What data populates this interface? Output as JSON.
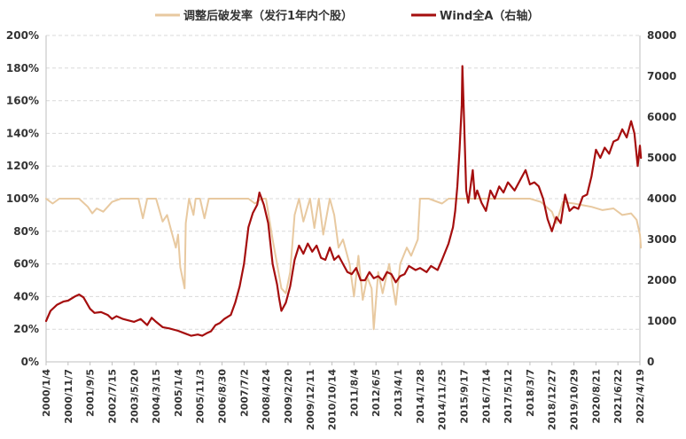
{
  "chart_data": {
    "type": "line",
    "title": "",
    "legend_position": "top",
    "grid": true,
    "categories": [
      "2000/1/4",
      "2000/11/7",
      "2001/9/5",
      "2002/7/15",
      "2003/5/20",
      "2004/3/15",
      "2005/1/4",
      "2005/11/3",
      "2006/8/30",
      "2007/7/2",
      "2008/4/24",
      "2009/2/20",
      "2009/12/11",
      "2010/10/14",
      "2011/8/4",
      "2012/6/5",
      "2013/4/1",
      "2014/1/28",
      "2014/11/25",
      "2015/9/17",
      "2016/7/14",
      "2017/5/12",
      "2018/3/7",
      "2018/12/27",
      "2019/10/29",
      "2020/8/21",
      "2021/6/22",
      "2022/4/19"
    ],
    "y_left": {
      "min": 0,
      "max": 200,
      "step": 20,
      "tick_labels": [
        "0%",
        "20%",
        "40%",
        "60%",
        "80%",
        "100%",
        "120%",
        "140%",
        "160%",
        "180%",
        "200%"
      ]
    },
    "y_right": {
      "min": 0,
      "max": 8000,
      "step": 1000,
      "tick_labels": [
        "0",
        "1000",
        "2000",
        "3000",
        "4000",
        "5000",
        "6000",
        "7000",
        "8000"
      ]
    },
    "series": [
      {
        "name": "调整后破发率（发行1年内个股）",
        "axis": "left",
        "color": "#E8C9A0",
        "points": [
          [
            0,
            100
          ],
          [
            0.3,
            97
          ],
          [
            0.6,
            100
          ],
          [
            1.5,
            100
          ],
          [
            1.9,
            95
          ],
          [
            2.1,
            91
          ],
          [
            2.3,
            94
          ],
          [
            2.6,
            92
          ],
          [
            3.0,
            98
          ],
          [
            3.4,
            100
          ],
          [
            4.2,
            100
          ],
          [
            4.4,
            88
          ],
          [
            4.6,
            100
          ],
          [
            5.0,
            100
          ],
          [
            5.3,
            86
          ],
          [
            5.5,
            90
          ],
          [
            5.7,
            80
          ],
          [
            5.9,
            70
          ],
          [
            6.0,
            78
          ],
          [
            6.1,
            58
          ],
          [
            6.3,
            45
          ],
          [
            6.35,
            85
          ],
          [
            6.5,
            100
          ],
          [
            6.7,
            90
          ],
          [
            6.8,
            100
          ],
          [
            7.0,
            100
          ],
          [
            7.2,
            88
          ],
          [
            7.4,
            100
          ],
          [
            8.0,
            100
          ],
          [
            8.5,
            100
          ],
          [
            9.2,
            100
          ],
          [
            9.5,
            97
          ],
          [
            9.8,
            100
          ],
          [
            10.0,
            100
          ],
          [
            10.3,
            75
          ],
          [
            10.5,
            60
          ],
          [
            10.7,
            45
          ],
          [
            10.9,
            42
          ],
          [
            11.1,
            55
          ],
          [
            11.3,
            90
          ],
          [
            11.5,
            100
          ],
          [
            11.7,
            86
          ],
          [
            12.0,
            100
          ],
          [
            12.2,
            82
          ],
          [
            12.4,
            100
          ],
          [
            12.6,
            78
          ],
          [
            12.9,
            100
          ],
          [
            13.1,
            90
          ],
          [
            13.3,
            70
          ],
          [
            13.5,
            75
          ],
          [
            13.8,
            60
          ],
          [
            14.0,
            40
          ],
          [
            14.2,
            65
          ],
          [
            14.4,
            38
          ],
          [
            14.6,
            52
          ],
          [
            14.8,
            45
          ],
          [
            14.9,
            20
          ],
          [
            15.1,
            55
          ],
          [
            15.3,
            42
          ],
          [
            15.6,
            60
          ],
          [
            15.9,
            35
          ],
          [
            16.1,
            60
          ],
          [
            16.4,
            70
          ],
          [
            16.6,
            65
          ],
          [
            16.9,
            75
          ],
          [
            17.0,
            100
          ],
          [
            17.4,
            100
          ],
          [
            18.0,
            97
          ],
          [
            18.3,
            100
          ],
          [
            19.0,
            100
          ],
          [
            20.0,
            100
          ],
          [
            21.0,
            100
          ],
          [
            22.0,
            100
          ],
          [
            22.5,
            98
          ],
          [
            23.0,
            92
          ],
          [
            23.2,
            85
          ],
          [
            23.5,
            98
          ],
          [
            24.0,
            97
          ],
          [
            24.4,
            96
          ],
          [
            24.8,
            95
          ],
          [
            25.3,
            93
          ],
          [
            25.8,
            94
          ],
          [
            26.2,
            90
          ],
          [
            26.6,
            91
          ],
          [
            26.85,
            87
          ],
          [
            27.0,
            78
          ],
          [
            27.05,
            70
          ]
        ]
      },
      {
        "name": "Wind全A（右轴）",
        "axis": "right",
        "color": "#A50E0E",
        "points": [
          [
            0,
            1000
          ],
          [
            0.2,
            1250
          ],
          [
            0.5,
            1400
          ],
          [
            0.8,
            1480
          ],
          [
            1.0,
            1500
          ],
          [
            1.3,
            1600
          ],
          [
            1.5,
            1650
          ],
          [
            1.7,
            1580
          ],
          [
            2.0,
            1300
          ],
          [
            2.2,
            1200
          ],
          [
            2.5,
            1220
          ],
          [
            2.8,
            1150
          ],
          [
            3.0,
            1050
          ],
          [
            3.2,
            1120
          ],
          [
            3.5,
            1050
          ],
          [
            4.0,
            980
          ],
          [
            4.3,
            1050
          ],
          [
            4.6,
            900
          ],
          [
            4.8,
            1080
          ],
          [
            5.0,
            980
          ],
          [
            5.3,
            850
          ],
          [
            5.6,
            820
          ],
          [
            6.0,
            760
          ],
          [
            6.3,
            700
          ],
          [
            6.6,
            640
          ],
          [
            6.9,
            670
          ],
          [
            7.1,
            640
          ],
          [
            7.3,
            700
          ],
          [
            7.5,
            750
          ],
          [
            7.7,
            900
          ],
          [
            7.9,
            950
          ],
          [
            8.1,
            1050
          ],
          [
            8.4,
            1150
          ],
          [
            8.6,
            1450
          ],
          [
            8.8,
            1850
          ],
          [
            9.0,
            2400
          ],
          [
            9.2,
            3300
          ],
          [
            9.4,
            3650
          ],
          [
            9.6,
            3850
          ],
          [
            9.7,
            4150
          ],
          [
            9.9,
            3850
          ],
          [
            10.1,
            3400
          ],
          [
            10.3,
            2400
          ],
          [
            10.5,
            1900
          ],
          [
            10.6,
            1550
          ],
          [
            10.7,
            1250
          ],
          [
            10.9,
            1450
          ],
          [
            11.1,
            1850
          ],
          [
            11.3,
            2500
          ],
          [
            11.5,
            2850
          ],
          [
            11.7,
            2650
          ],
          [
            11.9,
            2900
          ],
          [
            12.1,
            2700
          ],
          [
            12.3,
            2850
          ],
          [
            12.5,
            2550
          ],
          [
            12.7,
            2500
          ],
          [
            12.9,
            2800
          ],
          [
            13.1,
            2500
          ],
          [
            13.3,
            2600
          ],
          [
            13.5,
            2400
          ],
          [
            13.7,
            2200
          ],
          [
            13.9,
            2150
          ],
          [
            14.1,
            2300
          ],
          [
            14.3,
            2000
          ],
          [
            14.5,
            2000
          ],
          [
            14.7,
            2200
          ],
          [
            14.9,
            2050
          ],
          [
            15.1,
            2100
          ],
          [
            15.3,
            2000
          ],
          [
            15.5,
            2200
          ],
          [
            15.7,
            2150
          ],
          [
            15.9,
            1950
          ],
          [
            16.1,
            2100
          ],
          [
            16.3,
            2150
          ],
          [
            16.5,
            2350
          ],
          [
            16.8,
            2250
          ],
          [
            17.0,
            2300
          ],
          [
            17.3,
            2200
          ],
          [
            17.5,
            2350
          ],
          [
            17.8,
            2250
          ],
          [
            18.0,
            2500
          ],
          [
            18.3,
            2900
          ],
          [
            18.5,
            3300
          ],
          [
            18.6,
            3700
          ],
          [
            18.7,
            4300
          ],
          [
            18.8,
            5200
          ],
          [
            18.9,
            6300
          ],
          [
            18.93,
            7250
          ],
          [
            19.0,
            6000
          ],
          [
            19.1,
            4200
          ],
          [
            19.2,
            3900
          ],
          [
            19.4,
            4700
          ],
          [
            19.5,
            4000
          ],
          [
            19.6,
            4200
          ],
          [
            19.8,
            3900
          ],
          [
            20.0,
            3700
          ],
          [
            20.2,
            4200
          ],
          [
            20.4,
            4000
          ],
          [
            20.6,
            4300
          ],
          [
            20.8,
            4150
          ],
          [
            21.0,
            4400
          ],
          [
            21.3,
            4200
          ],
          [
            21.6,
            4500
          ],
          [
            21.8,
            4700
          ],
          [
            22.0,
            4350
          ],
          [
            22.2,
            4400
          ],
          [
            22.4,
            4300
          ],
          [
            22.6,
            4000
          ],
          [
            22.8,
            3500
          ],
          [
            23.0,
            3200
          ],
          [
            23.2,
            3550
          ],
          [
            23.4,
            3400
          ],
          [
            23.6,
            4100
          ],
          [
            23.8,
            3700
          ],
          [
            24.0,
            3800
          ],
          [
            24.2,
            3750
          ],
          [
            24.4,
            4050
          ],
          [
            24.6,
            4100
          ],
          [
            24.8,
            4550
          ],
          [
            25.0,
            5200
          ],
          [
            25.2,
            5000
          ],
          [
            25.4,
            5250
          ],
          [
            25.6,
            5100
          ],
          [
            25.8,
            5400
          ],
          [
            26.0,
            5450
          ],
          [
            26.2,
            5700
          ],
          [
            26.4,
            5500
          ],
          [
            26.6,
            5900
          ],
          [
            26.75,
            5600
          ],
          [
            26.9,
            4800
          ],
          [
            27.0,
            5300
          ],
          [
            27.05,
            5000
          ]
        ]
      }
    ]
  }
}
